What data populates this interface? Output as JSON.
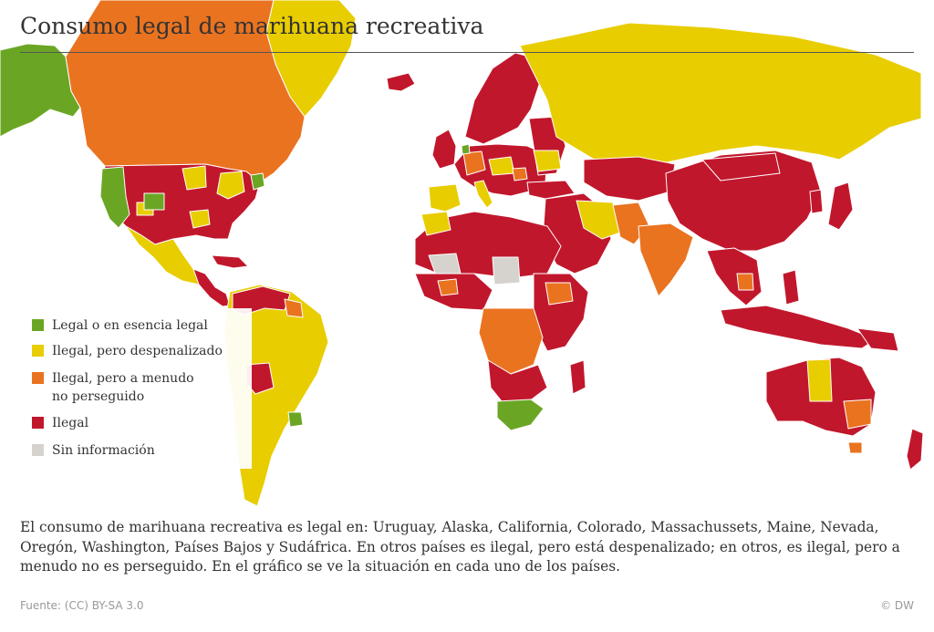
{
  "title": "Consumo legal de marihuana recreativa",
  "colors": {
    "legal": "#6aa624",
    "despenalizado": "#e8cd00",
    "no_perseguido": "#ea7320",
    "ilegal": "#c1172c",
    "sin_informacion": "#d6d2cd",
    "ocean": "#ffffff"
  },
  "legend": [
    {
      "key": "legal",
      "label": "Legal o en esencia legal",
      "color": "#6aa624"
    },
    {
      "key": "despenalizado",
      "label": "Ilegal, pero despenalizado",
      "color": "#e8cd00"
    },
    {
      "key": "no_perseguido",
      "label": "Ilegal, pero a menudo\nno perseguido",
      "color": "#ea7320"
    },
    {
      "key": "ilegal",
      "label": "Ilegal",
      "color": "#c1172c"
    },
    {
      "key": "sin_informacion",
      "label": "Sin información",
      "color": "#d6d2cd"
    }
  ],
  "description": "El consumo de marihuana recreativa es legal en: Uruguay, Alaska, California, Colorado, Massachussets, Maine, Nevada, Oregón, Washington, Países Bajos y Sudáfrica. En otros países es ilegal, pero está despenalizado; en otros, es ilegal, pero a menudo no es perseguido. En el gráfico se ve la situación en cada uno de los países.",
  "source": "Fuente: (CC) BY-SA 3.0",
  "credit": "© DW"
}
